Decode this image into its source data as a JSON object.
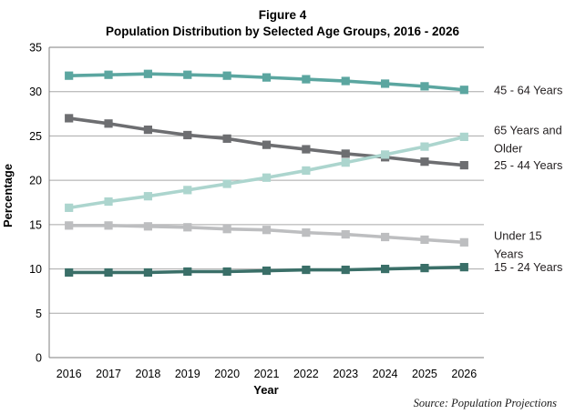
{
  "source_note": "Source: Population Projections",
  "chart_data": {
    "type": "line",
    "title": "Figure 4: Population Distribution by Selected Age Groups, 2016 - 2026",
    "title_lines": [
      "Figure 4",
      "Population Distribution by Selected Age Groups, 2016 - 2026"
    ],
    "xlabel": "Year",
    "ylabel": "Percentage",
    "ylim": [
      0,
      35
    ],
    "yticks": [
      0,
      5,
      10,
      15,
      20,
      25,
      30,
      35
    ],
    "grid": true,
    "legend_position": "right-end-of-line-labels",
    "categories": [
      "2016",
      "2017",
      "2018",
      "2019",
      "2020",
      "2021",
      "2022",
      "2023",
      "2024",
      "2025",
      "2026"
    ],
    "series": [
      {
        "id": "45-64-years",
        "name": "45 - 64 Years",
        "label_lines": [
          "45 - 64 Years"
        ],
        "color": "#5BA6A0",
        "z": 3,
        "values": [
          31.8,
          31.9,
          32.0,
          31.9,
          31.8,
          31.6,
          31.4,
          31.2,
          30.9,
          30.6,
          30.2
        ]
      },
      {
        "id": "65-years-and-older",
        "name": "65 Years and Older",
        "label_lines": [
          "65 Years and",
          "Older"
        ],
        "color": "#ACD5CE",
        "z": 4,
        "values": [
          16.9,
          17.6,
          18.2,
          18.9,
          19.6,
          20.3,
          21.1,
          22.0,
          22.9,
          23.8,
          24.9
        ]
      },
      {
        "id": "25-44-years",
        "name": "25 - 44 Years",
        "label_lines": [
          "25 - 44 Years"
        ],
        "color": "#6D6E71",
        "z": 2,
        "values": [
          27.0,
          26.4,
          25.7,
          25.1,
          24.7,
          24.0,
          23.5,
          23.0,
          22.6,
          22.1,
          21.7
        ]
      },
      {
        "id": "under-15-years",
        "name": "Under 15 Years",
        "label_lines": [
          "Under 15",
          "Years"
        ],
        "color": "#BDBEC0",
        "z": 1,
        "values": [
          14.9,
          14.9,
          14.8,
          14.7,
          14.5,
          14.4,
          14.1,
          13.9,
          13.6,
          13.3,
          13.0
        ]
      },
      {
        "id": "15-24-years",
        "name": "15 - 24 Years",
        "label_lines": [
          "15 - 24 Years"
        ],
        "color": "#3A6F68",
        "z": 5,
        "values": [
          9.6,
          9.6,
          9.6,
          9.7,
          9.7,
          9.8,
          9.9,
          9.9,
          10.0,
          10.1,
          10.2
        ]
      }
    ]
  }
}
